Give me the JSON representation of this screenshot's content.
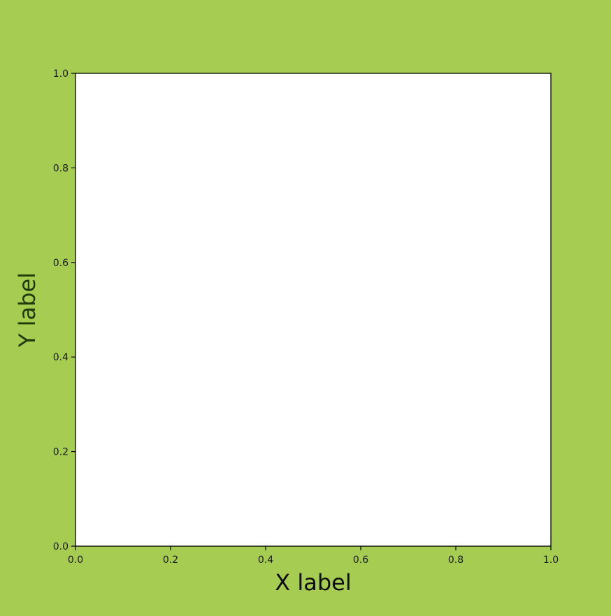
{
  "figure": {
    "background_color": "#a6cd52",
    "axes_background_color": "#ffffff",
    "label_color": "#1f3a08"
  },
  "chart_data": {
    "type": "scatter",
    "title": "",
    "xlabel": "X label",
    "ylabel": "Y label",
    "xlim": [
      0.0,
      1.0
    ],
    "ylim": [
      0.0,
      1.0
    ],
    "x_ticks": [
      0.0,
      0.2,
      0.4,
      0.6,
      0.8,
      1.0
    ],
    "x_tick_labels": [
      "0.0",
      "0.2",
      "0.4",
      "0.6",
      "0.8",
      "1.0"
    ],
    "y_ticks": [
      0.0,
      0.2,
      0.4,
      0.6,
      0.8,
      1.0
    ],
    "y_tick_labels": [
      "0.0",
      "0.2",
      "0.4",
      "0.6",
      "0.8",
      "1.0"
    ],
    "grid": false,
    "series": []
  }
}
